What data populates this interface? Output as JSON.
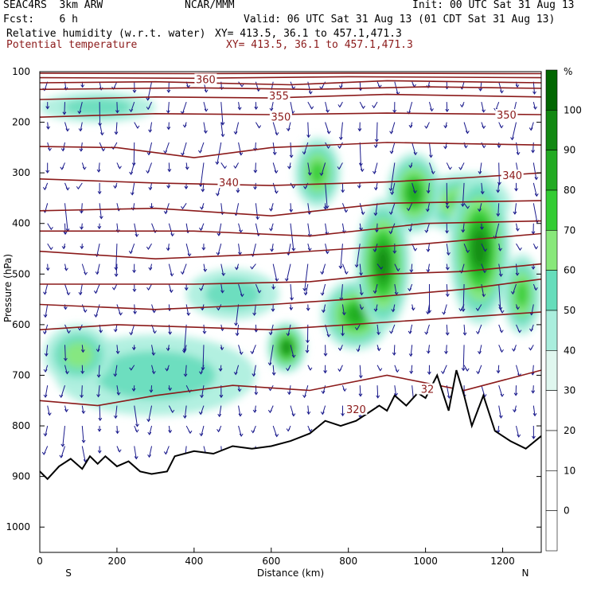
{
  "header": {
    "model": "SEAC4RS  3km ARW",
    "org": "NCAR/MMM",
    "init": "Init: 00 UTC Sat 31 Aug 13",
    "fcst": "Fcst:    6 h",
    "valid": "Valid: 06 UTC Sat 31 Aug 13 (01 CDT Sat 31 Aug 13)",
    "field1": "Relative humidity (w.r.t. water)",
    "field1_xy": "XY= 413.5, 36.1 to 457.1,471.3",
    "field2": "Potential temperature",
    "field2_xy": "XY= 413.5, 36.1 to 457.1,471.3"
  },
  "colors": {
    "theta": "#8b1a1a",
    "terrain": "#000000",
    "wind": "#1a1a8c",
    "field2_text": "#8b1a1a"
  },
  "chart_data": {
    "type": "heatmap",
    "xlabel": "Distance (km)",
    "ylabel": "Pressure (hPa)",
    "xlim": [
      0,
      1300
    ],
    "ylim": [
      100,
      1050
    ],
    "x_ticks": [
      0,
      200,
      400,
      600,
      800,
      1000,
      1200
    ],
    "y_ticks": [
      100,
      200,
      300,
      400,
      500,
      600,
      700,
      800,
      900,
      1000
    ],
    "x_end_labels": {
      "left": "S",
      "right": "N"
    },
    "colorbar": {
      "unit": "%",
      "levels": [
        0,
        10,
        20,
        30,
        40,
        50,
        60,
        70,
        80,
        90,
        100
      ],
      "colors": [
        "#ffffff",
        "#ffffff",
        "#ffffff",
        "#ffffff",
        "#e0f7ef",
        "#aaeedd",
        "#66ddbb",
        "#88e87a",
        "#33cc33",
        "#22aa22",
        "#118811",
        "#006600"
      ]
    },
    "theta_labels": [
      {
        "text": "360",
        "x": 430,
        "p": 118
      },
      {
        "text": "355",
        "x": 620,
        "p": 150
      },
      {
        "text": "350",
        "x": 625,
        "p": 192
      },
      {
        "text": "350",
        "x": 1210,
        "p": 188
      },
      {
        "text": "340",
        "x": 490,
        "p": 322
      },
      {
        "text": "340",
        "x": 1225,
        "p": 308
      },
      {
        "text": "320",
        "x": 820,
        "p": 770
      },
      {
        "text": "32",
        "x": 1005,
        "p": 730
      }
    ],
    "theta_contours_p": [
      [
        [
          0,
          95
        ],
        [
          300,
          95
        ],
        [
          650,
          98
        ],
        [
          1000,
          96
        ],
        [
          1300,
          97
        ]
      ],
      [
        [
          0,
          103
        ],
        [
          400,
          104
        ],
        [
          800,
          103
        ],
        [
          1300,
          104
        ]
      ],
      [
        [
          0,
          112
        ],
        [
          400,
          113
        ],
        [
          800,
          110
        ],
        [
          1300,
          112
        ]
      ],
      [
        [
          0,
          122
        ],
        [
          300,
          120
        ],
        [
          650,
          126
        ],
        [
          900,
          118
        ],
        [
          1300,
          122
        ]
      ],
      [
        [
          0,
          135
        ],
        [
          400,
          132
        ],
        [
          700,
          135
        ],
        [
          1000,
          130
        ],
        [
          1300,
          133
        ]
      ],
      [
        [
          0,
          155
        ],
        [
          300,
          150
        ],
        [
          600,
          152
        ],
        [
          900,
          145
        ],
        [
          1300,
          150
        ]
      ],
      [
        [
          0,
          190
        ],
        [
          300,
          183
        ],
        [
          600,
          185
        ],
        [
          900,
          182
        ],
        [
          1300,
          185
        ]
      ],
      [
        [
          0,
          248
        ],
        [
          200,
          250
        ],
        [
          400,
          270
        ],
        [
          600,
          250
        ],
        [
          900,
          240
        ],
        [
          1300,
          245
        ]
      ],
      [
        [
          0,
          312
        ],
        [
          300,
          320
        ],
        [
          600,
          325
        ],
        [
          900,
          318
        ],
        [
          1100,
          310
        ],
        [
          1300,
          300
        ]
      ],
      [
        [
          0,
          375
        ],
        [
          300,
          370
        ],
        [
          600,
          385
        ],
        [
          900,
          360
        ],
        [
          1300,
          355
        ]
      ],
      [
        [
          0,
          415
        ],
        [
          400,
          415
        ],
        [
          700,
          425
        ],
        [
          1000,
          400
        ],
        [
          1300,
          395
        ]
      ],
      [
        [
          0,
          455
        ],
        [
          300,
          470
        ],
        [
          600,
          460
        ],
        [
          800,
          450
        ],
        [
          1000,
          440
        ],
        [
          1300,
          420
        ]
      ],
      [
        [
          0,
          520
        ],
        [
          400,
          520
        ],
        [
          700,
          515
        ],
        [
          900,
          500
        ],
        [
          1100,
          495
        ],
        [
          1300,
          480
        ]
      ],
      [
        [
          0,
          560
        ],
        [
          300,
          570
        ],
        [
          600,
          560
        ],
        [
          800,
          550
        ],
        [
          1100,
          530
        ],
        [
          1300,
          510
        ]
      ],
      [
        [
          0,
          610
        ],
        [
          200,
          600
        ],
        [
          400,
          605
        ],
        [
          600,
          610
        ],
        [
          800,
          600
        ],
        [
          1100,
          585
        ],
        [
          1300,
          575
        ]
      ],
      [
        [
          0,
          750
        ],
        [
          150,
          760
        ],
        [
          300,
          740
        ],
        [
          500,
          720
        ],
        [
          700,
          730
        ],
        [
          900,
          700
        ],
        [
          1100,
          730
        ],
        [
          1300,
          690
        ]
      ]
    ],
    "terrain_p": [
      [
        0,
        890
      ],
      [
        20,
        905
      ],
      [
        50,
        880
      ],
      [
        80,
        865
      ],
      [
        110,
        885
      ],
      [
        130,
        860
      ],
      [
        150,
        875
      ],
      [
        170,
        860
      ],
      [
        200,
        880
      ],
      [
        230,
        870
      ],
      [
        260,
        890
      ],
      [
        290,
        895
      ],
      [
        330,
        890
      ],
      [
        350,
        860
      ],
      [
        400,
        850
      ],
      [
        450,
        855
      ],
      [
        500,
        840
      ],
      [
        550,
        845
      ],
      [
        600,
        840
      ],
      [
        650,
        830
      ],
      [
        700,
        815
      ],
      [
        740,
        790
      ],
      [
        780,
        800
      ],
      [
        820,
        790
      ],
      [
        860,
        770
      ],
      [
        880,
        760
      ],
      [
        900,
        770
      ],
      [
        920,
        740
      ],
      [
        950,
        760
      ],
      [
        980,
        735
      ],
      [
        1000,
        745
      ],
      [
        1030,
        700
      ],
      [
        1060,
        770
      ],
      [
        1080,
        690
      ],
      [
        1100,
        740
      ],
      [
        1120,
        800
      ],
      [
        1150,
        740
      ],
      [
        1180,
        810
      ],
      [
        1220,
        830
      ],
      [
        1260,
        845
      ],
      [
        1300,
        820
      ]
    ],
    "rh_blobs": [
      {
        "x": 1140,
        "p": 450,
        "rx": 80,
        "rp": 150,
        "rh": 95
      },
      {
        "x": 970,
        "p": 340,
        "rx": 70,
        "rp": 80,
        "rh": 85
      },
      {
        "x": 890,
        "p": 480,
        "rx": 70,
        "rp": 130,
        "rh": 90
      },
      {
        "x": 820,
        "p": 580,
        "rx": 90,
        "rp": 70,
        "rh": 80
      },
      {
        "x": 640,
        "p": 645,
        "rx": 50,
        "rp": 50,
        "rh": 90
      },
      {
        "x": 1250,
        "p": 540,
        "rx": 50,
        "rp": 80,
        "rh": 75
      },
      {
        "x": 720,
        "p": 300,
        "rx": 60,
        "rp": 70,
        "rh": 70
      },
      {
        "x": 150,
        "p": 170,
        "rx": 150,
        "rp": 30,
        "rh": 50
      },
      {
        "x": 500,
        "p": 540,
        "rx": 120,
        "rp": 50,
        "rh": 55
      },
      {
        "x": 300,
        "p": 700,
        "rx": 260,
        "rp": 80,
        "rh": 55
      },
      {
        "x": 100,
        "p": 660,
        "rx": 90,
        "rp": 60,
        "rh": 60
      },
      {
        "x": 1100,
        "p": 360,
        "rx": 120,
        "rp": 60,
        "rh": 75
      }
    ]
  }
}
